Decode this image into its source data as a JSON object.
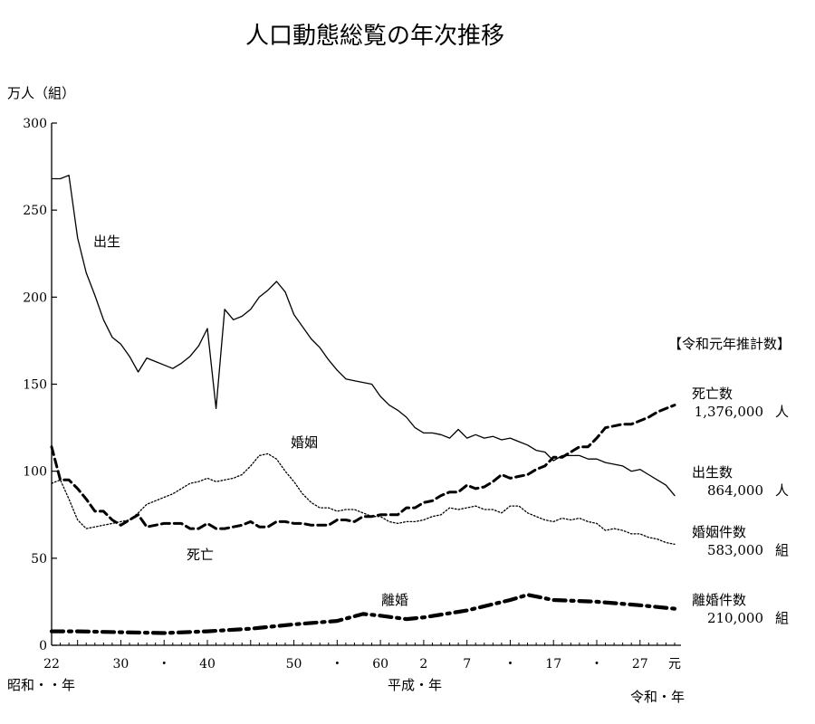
{
  "chart_data": {
    "type": "line",
    "title": "人口動態総覧の年次推移",
    "ylabel": "万人（組）",
    "ylim": [
      0,
      300
    ],
    "yticks": [
      0,
      50,
      100,
      150,
      200,
      250,
      300
    ],
    "xlim": [
      1947,
      2019
    ],
    "x_ticks": [
      {
        "year": 1947,
        "label": "22"
      },
      {
        "year": 1955,
        "label": "30"
      },
      {
        "year": 1960,
        "label": "・"
      },
      {
        "year": 1965,
        "label": "40"
      },
      {
        "year": 1975,
        "label": "50"
      },
      {
        "year": 1980,
        "label": "・"
      },
      {
        "year": 1985,
        "label": "60"
      },
      {
        "year": 1990,
        "label": "2"
      },
      {
        "year": 1995,
        "label": "7"
      },
      {
        "year": 2000,
        "label": "・"
      },
      {
        "year": 2005,
        "label": "17"
      },
      {
        "year": 2010,
        "label": "・"
      },
      {
        "year": 2015,
        "label": "27"
      },
      {
        "year": 2019,
        "label": "元"
      }
    ],
    "x_eras": [
      "昭和・・年",
      "平成・年",
      "令和・年"
    ],
    "legend_header": "【令和元年推計数】",
    "series": [
      {
        "name": "出生",
        "style": "solid",
        "x": [
          1947,
          1948,
          1949,
          1950,
          1951,
          1952,
          1953,
          1954,
          1955,
          1956,
          1957,
          1958,
          1959,
          1960,
          1961,
          1962,
          1963,
          1964,
          1965,
          1966,
          1967,
          1968,
          1969,
          1970,
          1971,
          1972,
          1973,
          1974,
          1975,
          1976,
          1977,
          1978,
          1979,
          1980,
          1981,
          1982,
          1983,
          1984,
          1985,
          1986,
          1987,
          1988,
          1989,
          1990,
          1991,
          1992,
          1993,
          1994,
          1995,
          1996,
          1997,
          1998,
          1999,
          2000,
          2001,
          2002,
          2003,
          2004,
          2005,
          2006,
          2007,
          2008,
          2009,
          2010,
          2011,
          2012,
          2013,
          2014,
          2015,
          2016,
          2017,
          2018,
          2019
        ],
        "y": [
          268,
          268,
          270,
          234,
          214,
          201,
          187,
          177,
          173,
          166,
          157,
          165,
          163,
          161,
          159,
          162,
          166,
          172,
          182,
          136,
          193,
          187,
          189,
          193,
          200,
          204,
          209,
          203,
          190,
          183,
          176,
          171,
          164,
          158,
          153,
          152,
          151,
          150,
          143,
          138,
          135,
          131,
          125,
          122,
          122,
          121,
          119,
          124,
          119,
          121,
          119,
          120,
          118,
          119,
          117,
          115,
          112,
          111,
          106,
          109,
          109,
          109,
          107,
          107,
          105,
          104,
          103,
          100,
          101,
          98,
          95,
          92,
          86
        ]
      },
      {
        "name": "死亡",
        "style": "dashed",
        "x": [
          1947,
          1948,
          1949,
          1950,
          1951,
          1952,
          1953,
          1954,
          1955,
          1956,
          1957,
          1958,
          1959,
          1960,
          1961,
          1962,
          1963,
          1964,
          1965,
          1966,
          1967,
          1968,
          1969,
          1970,
          1971,
          1972,
          1973,
          1974,
          1975,
          1976,
          1977,
          1978,
          1979,
          1980,
          1981,
          1982,
          1983,
          1984,
          1985,
          1986,
          1987,
          1988,
          1989,
          1990,
          1991,
          1992,
          1993,
          1994,
          1995,
          1996,
          1997,
          1998,
          1999,
          2000,
          2001,
          2002,
          2003,
          2004,
          2005,
          2006,
          2007,
          2008,
          2009,
          2010,
          2011,
          2012,
          2013,
          2014,
          2015,
          2016,
          2017,
          2018,
          2019
        ],
        "y": [
          114,
          95,
          95,
          90,
          84,
          77,
          77,
          72,
          69,
          72,
          75,
          68,
          69,
          70,
          70,
          70,
          67,
          67,
          70,
          67,
          67,
          68,
          69,
          71,
          68,
          68,
          71,
          71,
          70,
          70,
          69,
          69,
          69,
          72,
          72,
          71,
          74,
          74,
          75,
          75,
          75,
          79,
          79,
          82,
          83,
          86,
          88,
          88,
          92,
          90,
          91,
          94,
          98,
          96,
          97,
          98,
          101,
          103,
          108,
          108,
          111,
          114,
          114,
          119,
          125,
          126,
          127,
          127,
          129,
          131,
          134,
          136,
          138
        ]
      },
      {
        "name": "婚姻",
        "style": "dotted",
        "x": [
          1947,
          1948,
          1949,
          1950,
          1951,
          1952,
          1953,
          1954,
          1955,
          1956,
          1957,
          1958,
          1959,
          1960,
          1961,
          1962,
          1963,
          1964,
          1965,
          1966,
          1967,
          1968,
          1969,
          1970,
          1971,
          1972,
          1973,
          1974,
          1975,
          1976,
          1977,
          1978,
          1979,
          1980,
          1981,
          1982,
          1983,
          1984,
          1985,
          1986,
          1987,
          1988,
          1989,
          1990,
          1991,
          1992,
          1993,
          1994,
          1995,
          1996,
          1997,
          1998,
          1999,
          2000,
          2001,
          2002,
          2003,
          2004,
          2005,
          2006,
          2007,
          2008,
          2009,
          2010,
          2011,
          2012,
          2013,
          2014,
          2015,
          2016,
          2017,
          2018,
          2019
        ],
        "y": [
          93,
          95,
          84,
          72,
          67,
          68,
          69,
          70,
          71,
          72,
          76,
          81,
          83,
          85,
          87,
          90,
          93,
          94,
          96,
          94,
          95,
          96,
          98,
          103,
          109,
          110,
          107,
          100,
          94,
          87,
          82,
          79,
          79,
          77,
          78,
          78,
          76,
          74,
          74,
          71,
          70,
          71,
          71,
          72,
          74,
          75,
          79,
          78,
          79,
          80,
          78,
          78,
          76,
          80,
          80,
          76,
          74,
          72,
          71,
          73,
          72,
          73,
          71,
          70,
          66,
          67,
          66,
          64,
          64,
          62,
          61,
          59,
          58
        ]
      },
      {
        "name": "離婚",
        "style": "dashdot",
        "x": [
          1947,
          1950,
          1955,
          1960,
          1965,
          1970,
          1975,
          1980,
          1983,
          1985,
          1988,
          1990,
          1995,
          2000,
          2002,
          2005,
          2010,
          2015,
          2019
        ],
        "y": [
          8,
          8,
          7.5,
          7,
          8,
          9.5,
          12,
          14,
          18,
          17,
          15,
          16,
          20,
          26,
          29,
          26,
          25,
          23,
          21
        ]
      }
    ],
    "series_labels": {
      "birth": "出生",
      "death": "死亡",
      "marriage": "婚姻",
      "divorce": "離婚"
    },
    "estimates": [
      {
        "name": "死亡数",
        "value": "1,376,000",
        "unit": "人"
      },
      {
        "name": "出生数",
        "value": "864,000",
        "unit": "人"
      },
      {
        "name": "婚姻件数",
        "value": "583,000",
        "unit": "組"
      },
      {
        "name": "離婚件数",
        "value": "210,000",
        "unit": "組"
      }
    ]
  }
}
